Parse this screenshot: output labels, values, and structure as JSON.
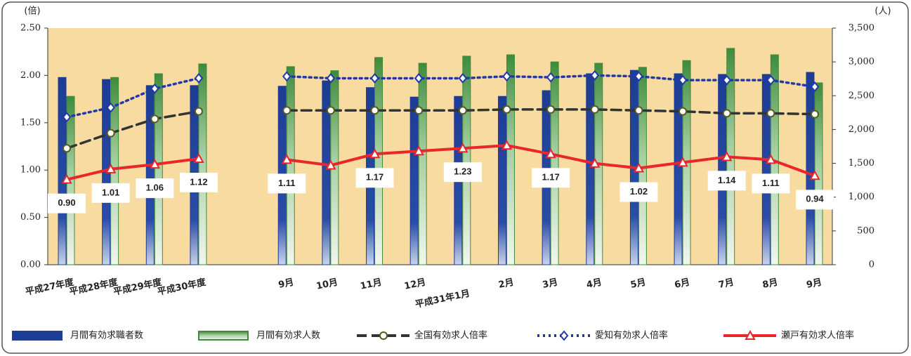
{
  "chart_data": {
    "type": "bar",
    "y_unit": "(倍)",
    "y2_unit": "(人)",
    "categories": [
      "平成27年度",
      "平成28年度",
      "平成29年度",
      "平成30年度",
      null,
      "9月",
      "10月",
      "11月",
      "12月",
      "平成31年1月",
      "2月",
      "3月",
      "4月",
      "5月",
      "6月",
      "7月",
      "8月",
      "9月"
    ],
    "ylim": [
      0,
      2.5
    ],
    "yticks": [
      {
        "value": 0,
        "label": "0.00"
      },
      {
        "value": 0.5,
        "label": "0.50"
      },
      {
        "value": 1,
        "label": "1.00"
      },
      {
        "value": 1.5,
        "label": "1.50"
      },
      {
        "value": 2,
        "label": "2.00"
      },
      {
        "value": 2.5,
        "label": "2.50"
      }
    ],
    "y2lim": [
      0,
      3500
    ],
    "y2ticks": [
      0,
      500,
      {
        "value": 1000,
        "label": "1,000"
      },
      {
        "value": 1500,
        "label": "1,500"
      },
      {
        "value": 2000,
        "label": "2,000"
      },
      {
        "value": 2500,
        "label": "2,500"
      },
      {
        "value": 3000,
        "label": "3,000"
      },
      {
        "value": 3500,
        "label": "3,500"
      }
    ],
    "grid": false,
    "series": [
      {
        "name": "月間有効求職者数",
        "type": "bar",
        "axis": "y2",
        "color": "#1d3c94",
        "values": [
          2770,
          2740,
          2650,
          2650,
          null,
          2640,
          2720,
          2620,
          2480,
          2490,
          2490,
          2575,
          2825,
          2875,
          2825,
          2815,
          2815,
          2845
        ]
      },
      {
        "name": "月間有効求人数",
        "type": "bar",
        "axis": "y2",
        "color": "#3e8b3c",
        "values": [
          2490,
          2770,
          2825,
          2970,
          null,
          2930,
          2870,
          3065,
          2980,
          3085,
          3105,
          3000,
          2980,
          2920,
          3020,
          3200,
          3105,
          2690
        ]
      },
      {
        "name": "全国有効求人倍率",
        "type": "line",
        "style": "dashed",
        "marker": "circle",
        "color": "#333333",
        "values": [
          1.23,
          1.39,
          1.54,
          1.62,
          null,
          1.63,
          1.63,
          1.63,
          1.63,
          1.63,
          1.64,
          1.64,
          1.64,
          1.63,
          1.62,
          1.6,
          1.6,
          1.59
        ]
      },
      {
        "name": "愛知有効求人倍率",
        "type": "line",
        "style": "dotted",
        "marker": "diamond",
        "color": "#2238a8",
        "values": [
          1.56,
          1.66,
          1.86,
          1.97,
          null,
          1.99,
          1.97,
          1.97,
          1.97,
          1.97,
          1.99,
          1.98,
          2.0,
          1.99,
          1.95,
          1.95,
          1.95,
          1.88
        ]
      },
      {
        "name": "瀬戸有効求人倍率",
        "type": "line",
        "style": "solid",
        "marker": "triangle",
        "color": "#e8262b",
        "values": [
          0.9,
          1.01,
          1.06,
          1.12,
          null,
          1.11,
          1.05,
          1.17,
          1.2,
          1.23,
          1.26,
          1.17,
          1.07,
          1.02,
          1.08,
          1.14,
          1.11,
          0.94
        ],
        "value_labels": [
          "0.90",
          "1.01",
          "1.06",
          "1.12",
          null,
          "1.11",
          null,
          "1.17",
          null,
          "1.23",
          null,
          "1.17",
          null,
          "1.02",
          null,
          "1.14",
          "1.11",
          "0.94"
        ]
      }
    ]
  }
}
